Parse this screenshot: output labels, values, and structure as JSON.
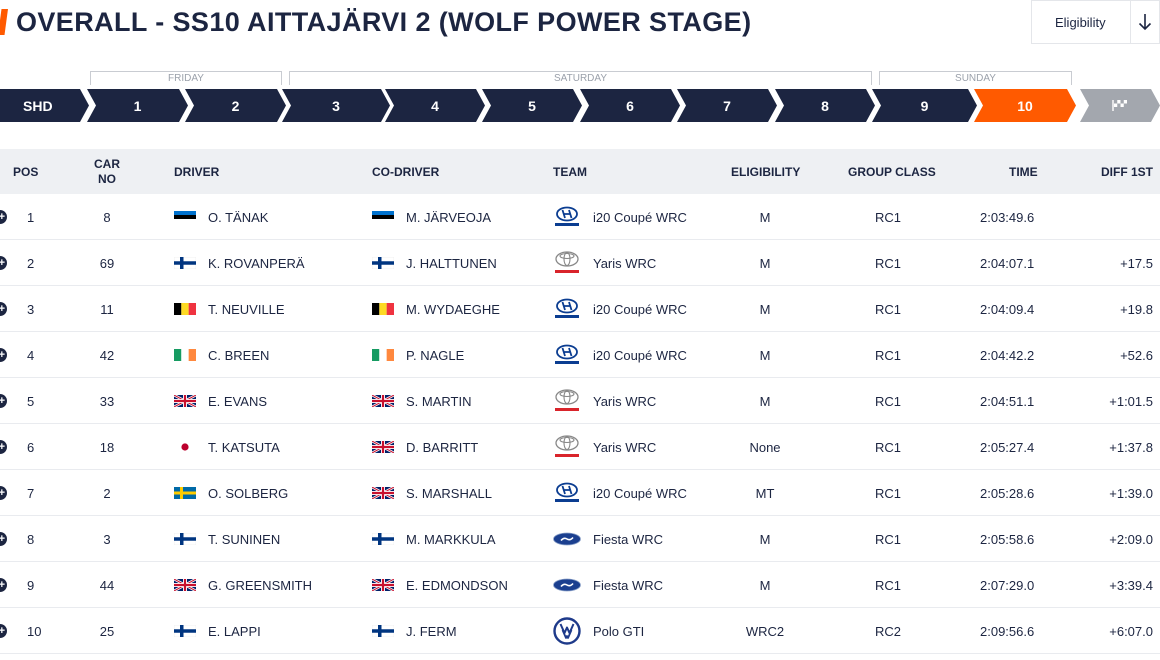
{
  "page": {
    "title": "OVERALL - SS10 AITTAJÄRVI 2 (WOLF POWER STAGE)",
    "accent_color": "#ff5a00",
    "navy_color": "#1c2541"
  },
  "eligibility_filter": {
    "label": "Eligibility",
    "icon": "arrow-down-icon"
  },
  "days": [
    {
      "label": "FRIDAY"
    },
    {
      "label": "SATURDAY"
    },
    {
      "label": "SUNDAY"
    }
  ],
  "stages": [
    {
      "label": "SHD"
    },
    {
      "label": "1"
    },
    {
      "label": "2"
    },
    {
      "label": "3"
    },
    {
      "label": "4"
    },
    {
      "label": "5"
    },
    {
      "label": "6"
    },
    {
      "label": "7"
    },
    {
      "label": "8"
    },
    {
      "label": "9"
    },
    {
      "label": "10",
      "active": true
    },
    {
      "label": "",
      "icon": "finish-flag-icon"
    }
  ],
  "table": {
    "headers": {
      "pos": "POS",
      "car_no_line1": "CAR",
      "car_no_line2": "NO",
      "driver": "DRIVER",
      "co_driver": "CO-DRIVER",
      "team": "TEAM",
      "eligibility": "ELIGIBILITY",
      "group_class": "GROUP CLASS",
      "time": "TIME",
      "diff_1st": "DIFF 1ST"
    },
    "rows": [
      {
        "pos": "1",
        "car": "8",
        "driver_flag": "estonia",
        "driver": "O. TÄNAK",
        "co_flag": "estonia",
        "co_driver": "M. JÄRVEOJA",
        "team_logo": "hyundai-logo-icon",
        "team": "i20 Coupé WRC",
        "elig": "M",
        "class": "RC1",
        "time": "2:03:49.6",
        "diff": ""
      },
      {
        "pos": "2",
        "car": "69",
        "driver_flag": "finland",
        "driver": "K. ROVANPERÄ",
        "co_flag": "finland",
        "co_driver": "J. HALTTUNEN",
        "team_logo": "toyota-logo-icon",
        "team": "Yaris WRC",
        "elig": "M",
        "class": "RC1",
        "time": "2:04:07.1",
        "diff": "+17.5"
      },
      {
        "pos": "3",
        "car": "11",
        "driver_flag": "belgium",
        "driver": "T. NEUVILLE",
        "co_flag": "belgium",
        "co_driver": "M. WYDAEGHE",
        "team_logo": "hyundai-logo-icon",
        "team": "i20 Coupé WRC",
        "elig": "M",
        "class": "RC1",
        "time": "2:04:09.4",
        "diff": "+19.8"
      },
      {
        "pos": "4",
        "car": "42",
        "driver_flag": "ireland",
        "driver": "C. BREEN",
        "co_flag": "ireland",
        "co_driver": "P. NAGLE",
        "team_logo": "hyundai-logo-icon",
        "team": "i20 Coupé WRC",
        "elig": "M",
        "class": "RC1",
        "time": "2:04:42.2",
        "diff": "+52.6"
      },
      {
        "pos": "5",
        "car": "33",
        "driver_flag": "uk",
        "driver": "E. EVANS",
        "co_flag": "uk",
        "co_driver": "S. MARTIN",
        "team_logo": "toyota-logo-icon",
        "team": "Yaris WRC",
        "elig": "M",
        "class": "RC1",
        "time": "2:04:51.1",
        "diff": "+1:01.5"
      },
      {
        "pos": "6",
        "car": "18",
        "driver_flag": "japan",
        "driver": "T. KATSUTA",
        "co_flag": "uk",
        "co_driver": "D. BARRITT",
        "team_logo": "toyota-logo-icon",
        "team": "Yaris WRC",
        "elig": "None",
        "class": "RC1",
        "time": "2:05:27.4",
        "diff": "+1:37.8"
      },
      {
        "pos": "7",
        "car": "2",
        "driver_flag": "sweden",
        "driver": "O. SOLBERG",
        "co_flag": "uk",
        "co_driver": "S. MARSHALL",
        "team_logo": "hyundai-logo-icon",
        "team": "i20 Coupé WRC",
        "elig": "MT",
        "class": "RC1",
        "time": "2:05:28.6",
        "diff": "+1:39.0"
      },
      {
        "pos": "8",
        "car": "3",
        "driver_flag": "finland",
        "driver": "T. SUNINEN",
        "co_flag": "finland",
        "co_driver": "M. MARKKULA",
        "team_logo": "ford-logo-icon",
        "team": "Fiesta WRC",
        "elig": "M",
        "class": "RC1",
        "time": "2:05:58.6",
        "diff": "+2:09.0"
      },
      {
        "pos": "9",
        "car": "44",
        "driver_flag": "uk",
        "driver": "G. GREENSMITH",
        "co_flag": "uk",
        "co_driver": "E. EDMONDSON",
        "team_logo": "ford-logo-icon",
        "team": "Fiesta WRC",
        "elig": "M",
        "class": "RC1",
        "time": "2:07:29.0",
        "diff": "+3:39.4"
      },
      {
        "pos": "10",
        "car": "25",
        "driver_flag": "finland",
        "driver": "E. LAPPI",
        "co_flag": "finland",
        "co_driver": "J. FERM",
        "team_logo": "volkswagen-logo-icon",
        "team": "Polo GTI",
        "elig": "WRC2",
        "class": "RC2",
        "time": "2:09:56.6",
        "diff": "+6:07.0"
      }
    ]
  }
}
